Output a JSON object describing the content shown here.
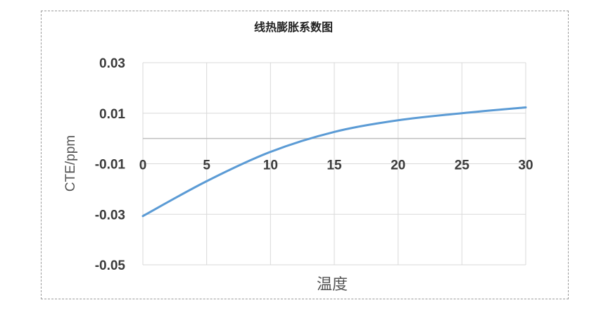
{
  "chart_data": {
    "type": "line",
    "title": "线热膨胀系数图",
    "xlabel": "温度",
    "ylabel": "CTE/ppm",
    "xlim": [
      0,
      30
    ],
    "ylim": [
      -0.05,
      0.03
    ],
    "x_ticks": [
      "0",
      "5",
      "10",
      "15",
      "20",
      "25",
      "30"
    ],
    "y_ticks": [
      "0.03",
      "0.01",
      "-0.01",
      "-0.03",
      "-0.05"
    ],
    "grid": true,
    "legend": "none",
    "series": [
      {
        "x": [
          0,
          5,
          10,
          15,
          20,
          25,
          30
        ],
        "y": [
          -0.0307,
          -0.0169,
          -0.0053,
          0.0026,
          0.0072,
          0.01,
          0.0123
        ],
        "color": "#5b9bd5"
      }
    ]
  }
}
